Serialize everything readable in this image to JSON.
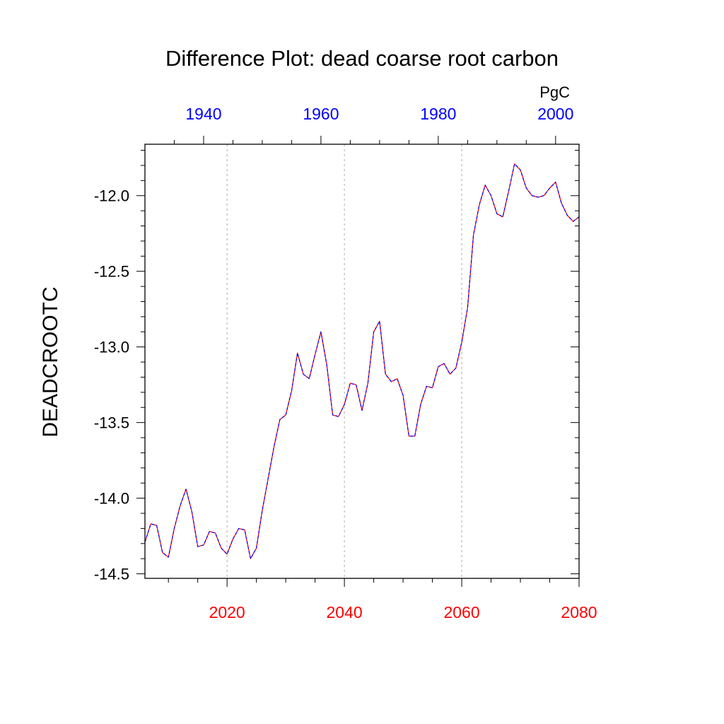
{
  "chart_data": {
    "type": "line",
    "title": "Difference Plot: dead coarse root carbon",
    "units": "PgC",
    "ylabel": "DEADCROOTC",
    "ylim": [
      -14.53,
      -11.66
    ],
    "yticks": [
      -14.5,
      -14.0,
      -13.5,
      -13.0,
      -12.5,
      -12.0
    ],
    "ytick_labels": [
      "-14.5",
      "-14.0",
      "-13.5",
      "-13.0",
      "-12.5",
      "-12.0"
    ],
    "x_bottom": {
      "range": [
        2006,
        2080
      ],
      "ticks": [
        2020,
        2040,
        2060,
        2080
      ],
      "tick_labels": [
        "2020",
        "2040",
        "2060",
        "2080"
      ],
      "color": "#ff0000"
    },
    "x_top": {
      "range": [
        1930,
        2004
      ],
      "ticks": [
        1940,
        1960,
        1980,
        2000
      ],
      "tick_labels": [
        "1940",
        "1960",
        "1980",
        "2000"
      ],
      "color": "#0000ff"
    },
    "grid": "vertical dotted at bottom-axis major ticks",
    "series": [
      {
        "line_colors": [
          "#ff0000",
          "#0000ff"
        ],
        "x": [
          2006,
          2007,
          2008,
          2009,
          2010,
          2011,
          2012,
          2013,
          2014,
          2015,
          2016,
          2017,
          2018,
          2019,
          2020,
          2021,
          2022,
          2023,
          2024,
          2025,
          2026,
          2027,
          2028,
          2029,
          2030,
          2031,
          2032,
          2033,
          2034,
          2035,
          2036,
          2037,
          2038,
          2039,
          2040,
          2041,
          2042,
          2043,
          2044,
          2045,
          2046,
          2047,
          2048,
          2049,
          2050,
          2051,
          2052,
          2053,
          2054,
          2055,
          2056,
          2057,
          2058,
          2059,
          2060,
          2061,
          2062,
          2063,
          2064,
          2065,
          2066,
          2067,
          2068,
          2069,
          2070,
          2071,
          2072,
          2073,
          2074,
          2075,
          2076,
          2077,
          2078,
          2079,
          2080
        ],
        "values": [
          -14.29,
          -14.17,
          -14.18,
          -14.36,
          -14.39,
          -14.2,
          -14.05,
          -13.94,
          -14.09,
          -14.32,
          -14.31,
          -14.22,
          -14.23,
          -14.33,
          -14.37,
          -14.27,
          -14.2,
          -14.21,
          -14.4,
          -14.33,
          -14.08,
          -13.87,
          -13.66,
          -13.48,
          -13.45,
          -13.29,
          -13.04,
          -13.18,
          -13.21,
          -13.05,
          -12.9,
          -13.12,
          -13.45,
          -13.46,
          -13.38,
          -13.24,
          -13.25,
          -13.42,
          -13.24,
          -12.9,
          -12.83,
          -13.18,
          -13.23,
          -13.21,
          -13.32,
          -13.59,
          -13.59,
          -13.38,
          -13.26,
          -13.27,
          -13.13,
          -13.11,
          -13.18,
          -13.14,
          -12.97,
          -12.74,
          -12.26,
          -12.06,
          -11.93,
          -12.0,
          -12.12,
          -12.14,
          -11.97,
          -11.79,
          -11.83,
          -11.95,
          -12.0,
          -12.01,
          -12.0,
          -11.95,
          -11.91,
          -12.05,
          -12.13,
          -12.17,
          -12.14
        ]
      }
    ]
  }
}
